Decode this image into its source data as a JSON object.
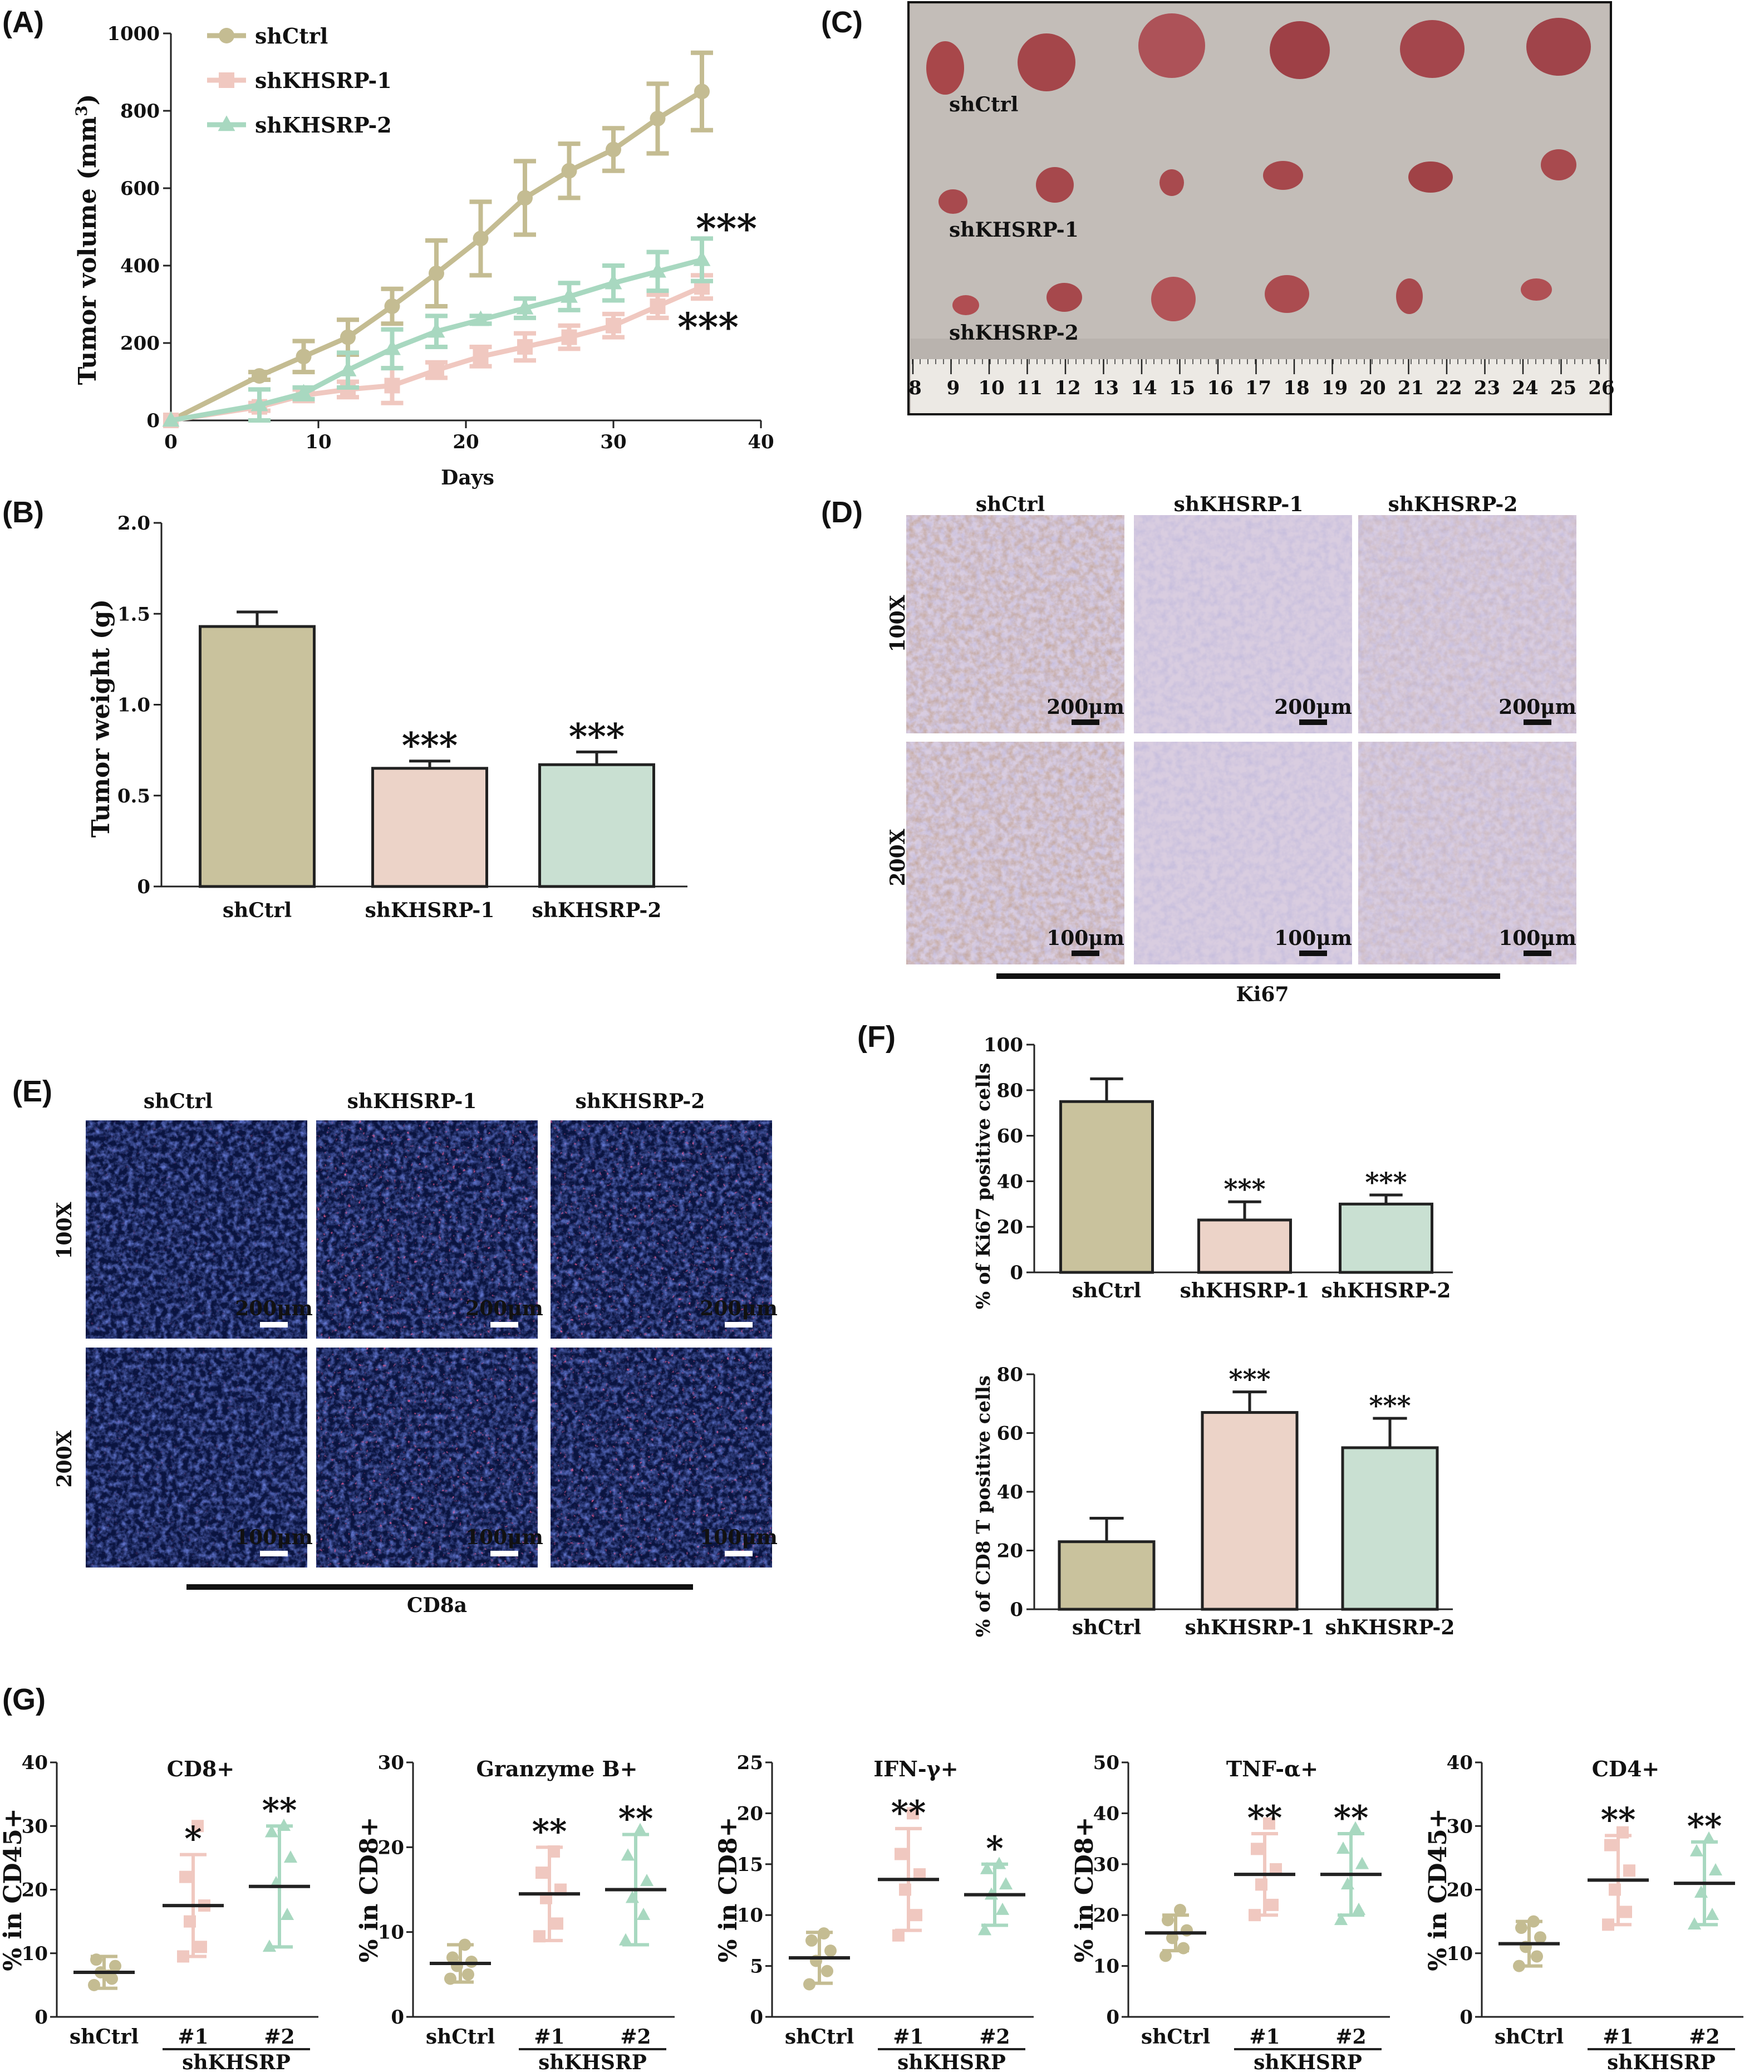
{
  "figure": {
    "panel_labels": {
      "A": "(A)",
      "B": "(B)",
      "C": "(C)",
      "D": "(D)",
      "E": "(E)",
      "F": "(F)",
      "G": "(G)"
    }
  },
  "colors": {
    "shCtrl": "#c9c29d",
    "shKHSRP1": "#ecd3c8",
    "shKHSRP2": "#c9e0d2",
    "line_shCtrl": "#c4bc92",
    "line_shKHSRP1": "#f0c8c0",
    "line_shKHSRP2": "#a8d8c0",
    "ink": "#222222"
  },
  "panelC": {
    "labels": [
      "shCtrl",
      "shKHSRP-1",
      "shKHSRP-2"
    ],
    "ruler_numbers": [
      "8",
      "9",
      "10",
      "11",
      "12",
      "13",
      "14",
      "15",
      "16",
      "17",
      "18",
      "19",
      "20",
      "21",
      "22",
      "23",
      "24",
      "25",
      "26"
    ]
  },
  "panelD": {
    "columns": [
      "shCtrl",
      "shKHSRP-1",
      "shKHSRP-2"
    ],
    "rows": [
      "100X",
      "200X"
    ],
    "scale_100X": "200μm",
    "scale_200X": "100μm",
    "stain": "Ki67"
  },
  "panelE": {
    "columns": [
      "shCtrl",
      "shKHSRP-1",
      "shKHSRP-2"
    ],
    "rows": [
      "100X",
      "200X"
    ],
    "scale_100X": "200μm",
    "scale_200X": "100μm",
    "stain": "CD8a"
  },
  "chart_data": [
    {
      "id": "A",
      "type": "line",
      "xlabel": "Days",
      "ylabel": "Tumor volume (mm3)",
      "xlim": [
        0,
        40
      ],
      "ylim": [
        0,
        1000
      ],
      "xticks": [
        0,
        10,
        20,
        30,
        40
      ],
      "yticks": [
        0,
        200,
        400,
        600,
        800,
        1000
      ],
      "legend": [
        "shCtrl",
        "shKHSRP-1",
        "shKHSRP-2"
      ],
      "legend_position": "top-left",
      "series": [
        {
          "name": "shCtrl",
          "marker": "circle",
          "x": [
            0,
            6,
            9,
            12,
            15,
            18,
            21,
            24,
            27,
            30,
            33,
            36
          ],
          "y": [
            0,
            115,
            165,
            215,
            295,
            380,
            470,
            575,
            645,
            700,
            780,
            850
          ],
          "err": [
            0,
            10,
            40,
            45,
            45,
            85,
            95,
            95,
            70,
            55,
            90,
            100
          ]
        },
        {
          "name": "shKHSRP-1",
          "marker": "square",
          "x": [
            0,
            6,
            9,
            12,
            15,
            18,
            21,
            24,
            27,
            30,
            33,
            36
          ],
          "y": [
            0,
            35,
            65,
            80,
            90,
            130,
            165,
            190,
            215,
            245,
            295,
            345
          ],
          "err": [
            0,
            10,
            15,
            20,
            45,
            20,
            25,
            35,
            30,
            30,
            30,
            30
          ]
        },
        {
          "name": "shKHSRP-2",
          "marker": "triangle",
          "x": [
            0,
            6,
            9,
            12,
            15,
            18,
            21,
            24,
            27,
            30,
            33,
            36
          ],
          "y": [
            0,
            40,
            70,
            130,
            185,
            230,
            260,
            290,
            320,
            355,
            385,
            415
          ],
          "err": [
            0,
            40,
            15,
            45,
            50,
            40,
            10,
            25,
            35,
            45,
            50,
            55
          ]
        }
      ],
      "annotations": [
        "***",
        "***"
      ]
    },
    {
      "id": "B",
      "type": "bar",
      "ylabel": "Tumor weight (g)",
      "categories": [
        "shCtrl",
        "shKHSRP-1",
        "shKHSRP-2"
      ],
      "values": [
        1.43,
        0.65,
        0.67
      ],
      "err": [
        0.08,
        0.04,
        0.07
      ],
      "ylim": [
        0,
        2.0
      ],
      "yticks": [
        "0",
        "0.5",
        "1.0",
        "1.5",
        "2.0"
      ],
      "annotations": [
        "",
        "***",
        "***"
      ]
    },
    {
      "id": "F1",
      "type": "bar",
      "ylabel": "% of Ki67 positive cells",
      "categories": [
        "shCtrl",
        "shKHSRP-1",
        "shKHSRP-2"
      ],
      "values": [
        75,
        23,
        30
      ],
      "err": [
        10,
        8,
        4
      ],
      "ylim": [
        0,
        100
      ],
      "yticks": [
        "0",
        "20",
        "40",
        "60",
        "80",
        "100"
      ],
      "annotations": [
        "",
        "***",
        "***"
      ]
    },
    {
      "id": "F2",
      "type": "bar",
      "ylabel": "% of CD8 T positive cells",
      "categories": [
        "shCtrl",
        "shKHSRP-1",
        "shKHSRP-2"
      ],
      "values": [
        23,
        67,
        55
      ],
      "err": [
        8,
        7,
        10
      ],
      "ylim": [
        0,
        80
      ],
      "yticks": [
        "0",
        "20",
        "40",
        "60",
        "80"
      ],
      "annotations": [
        "",
        "***",
        "***"
      ]
    },
    {
      "id": "G1",
      "type": "scatter",
      "title": "CD8+",
      "ylabel": "% in CD45+",
      "ylim": [
        0,
        40
      ],
      "yticks": [
        "0",
        "10",
        "20",
        "30",
        "40"
      ],
      "groups": [
        {
          "label": "shCtrl",
          "mean": 7.0,
          "sd": 2.5,
          "points": [
            5,
            6,
            7,
            8,
            9,
            6.5
          ],
          "sig": ""
        },
        {
          "label": "#1",
          "mean": 17.5,
          "sd": 8.0,
          "points": [
            9.5,
            11,
            15,
            17.5,
            22,
            30
          ],
          "sig": "*"
        },
        {
          "label": "#2",
          "mean": 20.5,
          "sd": 9.5,
          "points": [
            11,
            16,
            21,
            25,
            29,
            30
          ],
          "sig": "**"
        }
      ],
      "group_label": "shKHSRP"
    },
    {
      "id": "G2",
      "type": "scatter",
      "title": "Granzyme B+",
      "ylabel": "% in CD8+",
      "ylim": [
        0,
        30
      ],
      "yticks": [
        "0",
        "10",
        "20",
        "30"
      ],
      "groups": [
        {
          "label": "shCtrl",
          "mean": 6.3,
          "sd": 2.2,
          "points": [
            4.5,
            5,
            6,
            6.5,
            7,
            8.5
          ],
          "sig": ""
        },
        {
          "label": "#1",
          "mean": 14.5,
          "sd": 5.5,
          "points": [
            9.5,
            11,
            14,
            15,
            17,
            19.5
          ],
          "sig": "**"
        },
        {
          "label": "#2",
          "mean": 15.0,
          "sd": 6.5,
          "points": [
            9,
            12,
            14,
            16,
            19,
            22
          ],
          "sig": "**"
        }
      ],
      "group_label": "shKHSRP"
    },
    {
      "id": "G3",
      "type": "scatter",
      "title": "IFN-γ+",
      "ylabel": "% in CD8+",
      "ylim": [
        0,
        25
      ],
      "yticks": [
        "0",
        "5",
        "10",
        "15",
        "20",
        "25"
      ],
      "groups": [
        {
          "label": "shCtrl",
          "mean": 5.8,
          "sd": 2.5,
          "points": [
            3.2,
            4.5,
            5.5,
            6.5,
            7.5,
            8.2
          ],
          "sig": ""
        },
        {
          "label": "#1",
          "mean": 13.5,
          "sd": 5.0,
          "points": [
            8,
            10,
            12.5,
            14,
            16,
            20
          ],
          "sig": "**"
        },
        {
          "label": "#2",
          "mean": 12.0,
          "sd": 3.0,
          "points": [
            8.5,
            10.5,
            12,
            13,
            14.5,
            15
          ],
          "sig": "*"
        }
      ],
      "group_label": "shKHSRP"
    },
    {
      "id": "G4",
      "type": "scatter",
      "title": "TNF-α+",
      "ylabel": "% in CD8+",
      "ylim": [
        0,
        50
      ],
      "yticks": [
        "0",
        "10",
        "20",
        "30",
        "40",
        "50"
      ],
      "groups": [
        {
          "label": "shCtrl",
          "mean": 16.5,
          "sd": 3.5,
          "points": [
            12,
            13.5,
            15.5,
            17,
            19,
            21
          ],
          "sig": ""
        },
        {
          "label": "#1",
          "mean": 28.0,
          "sd": 8.0,
          "points": [
            20,
            22,
            26,
            29,
            33,
            38
          ],
          "sig": "**"
        },
        {
          "label": "#2",
          "mean": 28.0,
          "sd": 8.0,
          "points": [
            19,
            21,
            26,
            30,
            33,
            37
          ],
          "sig": "**"
        }
      ],
      "group_label": "shKHSRP"
    },
    {
      "id": "G5",
      "type": "scatter",
      "title": "CD4+",
      "ylabel": "% in CD45+",
      "ylim": [
        0,
        40
      ],
      "yticks": [
        "0",
        "10",
        "20",
        "30",
        "40"
      ],
      "groups": [
        {
          "label": "shCtrl",
          "mean": 11.5,
          "sd": 3.5,
          "points": [
            8,
            9.5,
            11,
            12.5,
            14,
            15
          ],
          "sig": ""
        },
        {
          "label": "#1",
          "mean": 21.5,
          "sd": 7.0,
          "points": [
            14.5,
            16.5,
            20,
            23,
            27,
            29
          ],
          "sig": "**"
        },
        {
          "label": "#2",
          "mean": 21.0,
          "sd": 6.5,
          "points": [
            14.5,
            16,
            19.5,
            23,
            26,
            28
          ],
          "sig": "**"
        }
      ],
      "group_label": "shKHSRP"
    }
  ]
}
